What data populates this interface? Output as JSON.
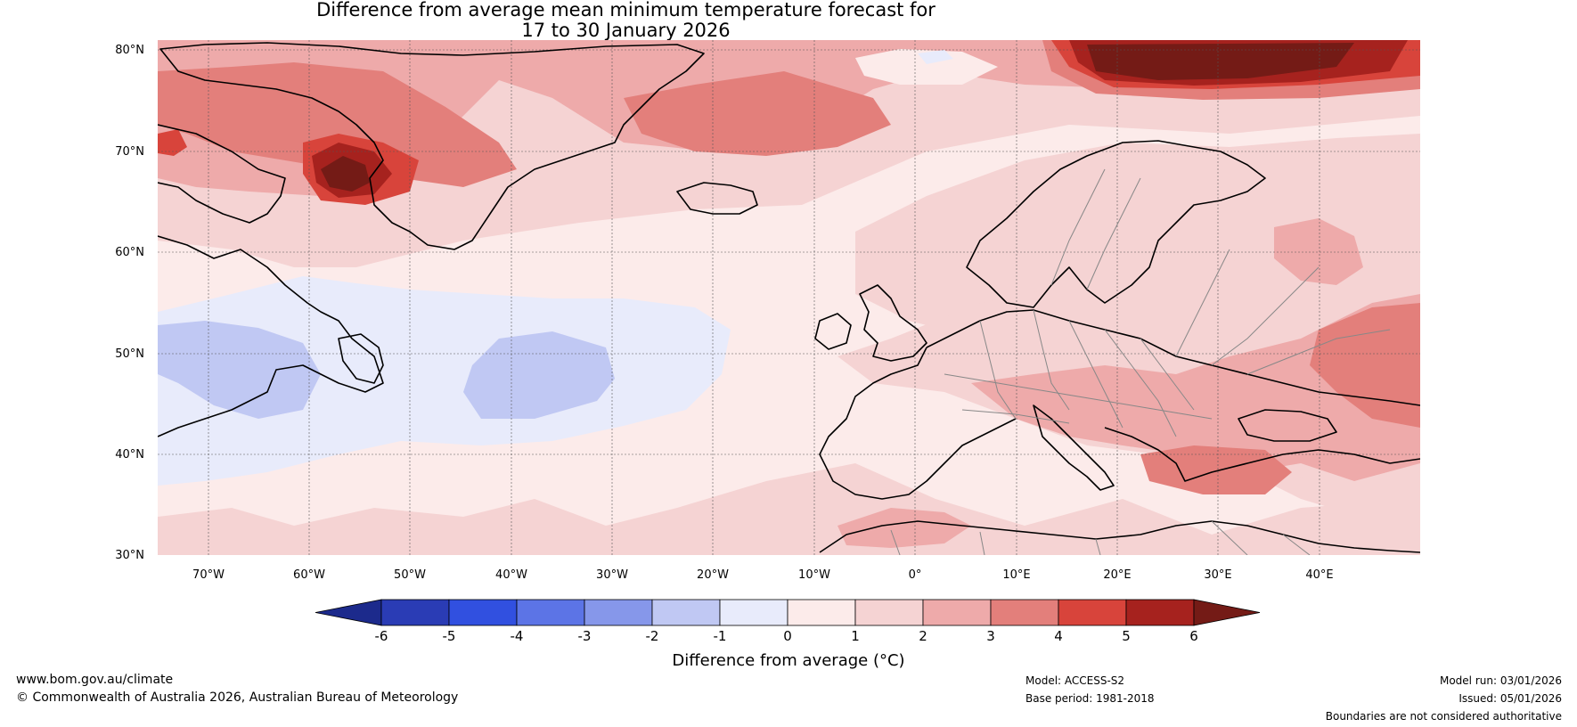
{
  "title": {
    "line1": "Difference from average mean minimum temperature forecast for",
    "line2": "17 to 30 January 2026"
  },
  "map": {
    "lat_labels": [
      "80°N",
      "70°N",
      "60°N",
      "50°N",
      "40°N",
      "30°N"
    ],
    "lon_labels": [
      "70°W",
      "60°W",
      "50°W",
      "40°W",
      "30°W",
      "20°W",
      "10°W",
      "0°",
      "10°E",
      "20°E",
      "30°E",
      "40°E"
    ],
    "extent": {
      "lon_min": -75,
      "lon_max": 50,
      "lat_min": 30,
      "lat_max": 81
    }
  },
  "colorbar": {
    "ticks": [
      "-6",
      "-5",
      "-4",
      "-3",
      "-2",
      "-1",
      "0",
      "1",
      "2",
      "3",
      "4",
      "5",
      "6"
    ],
    "colors": [
      "#1c2a8c",
      "#2a3cb5",
      "#3150e0",
      "#5c74e6",
      "#8697ea",
      "#c0c8f3",
      "#e8ebfb",
      "#fcebea",
      "#f5d3d3",
      "#eeaaaa",
      "#e37f7b",
      "#d8443b",
      "#a6221e",
      "#741b16"
    ],
    "label": "Difference from average (°C)"
  },
  "footer": {
    "website": "www.bom.gov.au/climate",
    "copyright": "© Commonwealth of Australia 2026, Australian Bureau of Meteorology",
    "model": "Model: ACCESS-S2",
    "base_period": "Base period: 1981-2018",
    "model_run": "Model run: 03/01/2026",
    "issued": "Issued: 05/01/2026",
    "disclaimer": "Boundaries are not considered authoritative"
  }
}
